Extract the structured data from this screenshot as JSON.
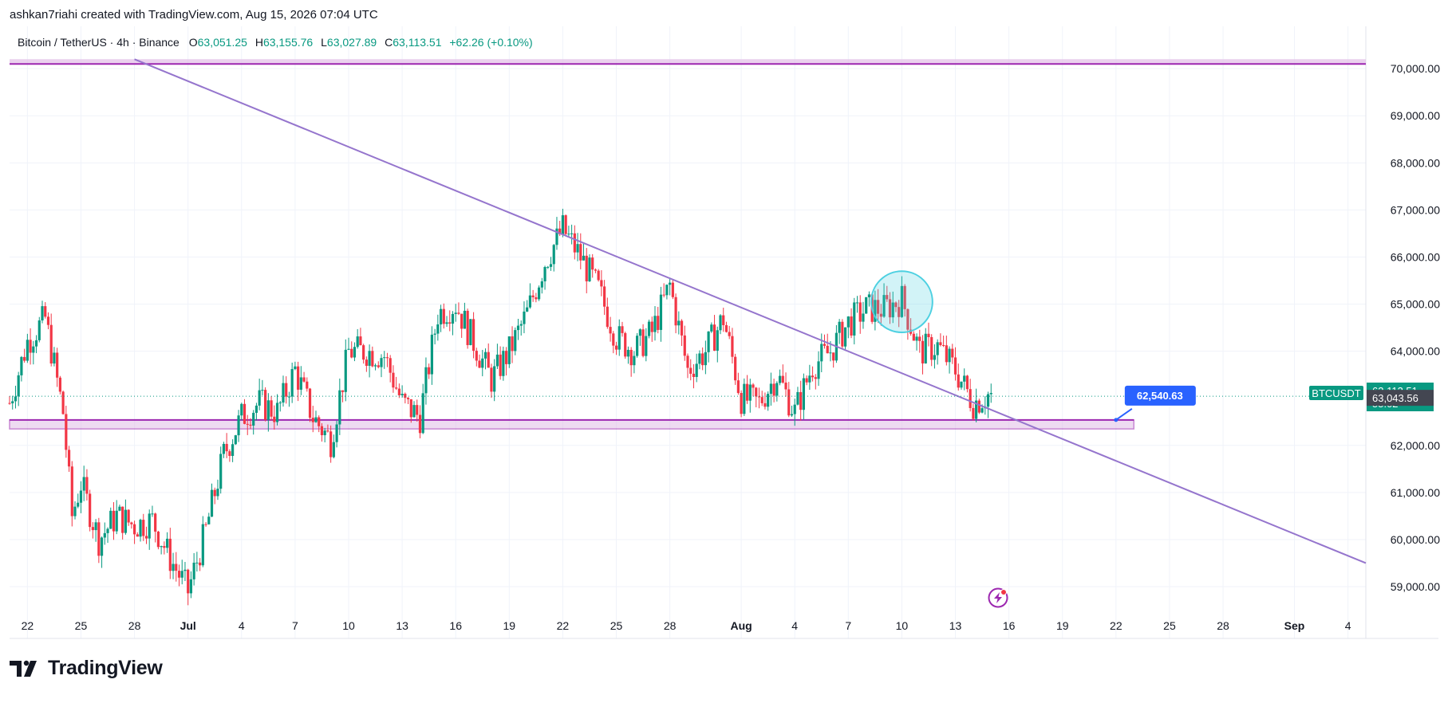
{
  "header": {
    "attribution": "ashkan7riahi created with TradingView.com, Aug 15, 2026 07:04 UTC"
  },
  "legend": {
    "symbol": "Bitcoin / TetherUS · 4h · Binance",
    "o_label": "O",
    "o_value": "63,051.25",
    "h_label": "H",
    "h_value": "63,155.76",
    "l_label": "L",
    "l_value": "63,027.89",
    "c_label": "C",
    "c_value": "63,113.51",
    "change": "+62.26 (+0.10%)"
  },
  "price_scale": {
    "ticks": [
      "70,000.00",
      "69,000.00",
      "68,000.00",
      "67,000.00",
      "66,000.00",
      "65,000.00",
      "64,000.00",
      "62,000.00",
      "61,000.00",
      "60,000.00",
      "59,000.00"
    ],
    "symbol_tag": "BTCUSDT",
    "last_price": "63,113.51",
    "countdown": "55:02",
    "ref_price": "63,043.56"
  },
  "time_scale": {
    "ticks": [
      "22",
      "25",
      "28",
      "Jul",
      "4",
      "7",
      "10",
      "13",
      "16",
      "19",
      "22",
      "25",
      "28",
      "Aug",
      "4",
      "7",
      "10",
      "13",
      "16",
      "19",
      "22",
      "25",
      "28",
      "Sep",
      "4"
    ]
  },
  "annotations": {
    "price_label": "62,540.63"
  },
  "brand": {
    "name": "TradingView"
  },
  "colors": {
    "up": "#089981",
    "down": "#f23645",
    "trendline": "#9575cd",
    "zone": "#9c27b0",
    "zone_fill": "#e1bee7",
    "circle": "#4dd0e1",
    "label_bg": "#2962ff",
    "last_price_bg": "#089981",
    "ref_bg": "#434651"
  },
  "chart_data": {
    "type": "candlestick",
    "symbol": "BTCUSDT",
    "timeframe": "4h",
    "exchange": "Binance",
    "ylim": [
      57900,
      70900
    ],
    "y_ticks": [
      59000,
      60000,
      61000,
      62000,
      64000,
      65000,
      66000,
      67000,
      68000,
      69000,
      70000
    ],
    "x_range": [
      "2026-06-21",
      "2026-09-05"
    ],
    "x_ticks": [
      "2026-06-22",
      "2026-06-25",
      "2026-06-28",
      "2026-07-01",
      "2026-07-04",
      "2026-07-07",
      "2026-07-10",
      "2026-07-13",
      "2026-07-16",
      "2026-07-19",
      "2026-07-22",
      "2026-07-25",
      "2026-07-28",
      "2026-08-01",
      "2026-08-04",
      "2026-08-07",
      "2026-08-10",
      "2026-08-13",
      "2026-08-16",
      "2026-08-19",
      "2026-08-22",
      "2026-08-25",
      "2026-08-28",
      "2026-09-01",
      "2026-09-04"
    ],
    "close_path": [
      [
        "2026-06-21",
        62900
      ],
      [
        "2026-06-22",
        64200
      ],
      [
        "2026-06-23",
        64700
      ],
      [
        "2026-06-24",
        62700
      ],
      [
        "2026-06-24T12",
        60500
      ],
      [
        "2026-06-25",
        61200
      ],
      [
        "2026-06-26",
        60000
      ],
      [
        "2026-06-27",
        60500
      ],
      [
        "2026-06-28",
        60300
      ],
      [
        "2026-06-29",
        60400
      ],
      [
        "2026-06-30",
        59600
      ],
      [
        "2026-07-01",
        58900
      ],
      [
        "2026-07-02",
        60200
      ],
      [
        "2026-07-03",
        61800
      ],
      [
        "2026-07-04",
        62600
      ],
      [
        "2026-07-05",
        62900
      ],
      [
        "2026-07-06",
        62700
      ],
      [
        "2026-07-07",
        63600
      ],
      [
        "2026-07-08",
        62600
      ],
      [
        "2026-07-09",
        62100
      ],
      [
        "2026-07-10",
        64000
      ],
      [
        "2026-07-11",
        64000
      ],
      [
        "2026-07-12",
        63900
      ],
      [
        "2026-07-13",
        62900
      ],
      [
        "2026-07-14",
        62600
      ],
      [
        "2026-07-15",
        64800
      ],
      [
        "2026-07-16",
        65000
      ],
      [
        "2026-07-17",
        64200
      ],
      [
        "2026-07-18",
        63400
      ],
      [
        "2026-07-19",
        64000
      ],
      [
        "2026-07-20",
        64800
      ],
      [
        "2026-07-21",
        65900
      ],
      [
        "2026-07-22",
        66600
      ],
      [
        "2026-07-23",
        66000
      ],
      [
        "2026-07-24",
        65300
      ],
      [
        "2026-07-25",
        64300
      ],
      [
        "2026-07-26",
        64000
      ],
      [
        "2026-07-27",
        64400
      ],
      [
        "2026-07-28",
        65400
      ],
      [
        "2026-07-29",
        63600
      ],
      [
        "2026-07-30",
        64000
      ],
      [
        "2026-07-31",
        64700
      ],
      [
        "2026-08-01",
        63000
      ],
      [
        "2026-08-02",
        62900
      ],
      [
        "2026-08-03",
        63500
      ],
      [
        "2026-08-04",
        62700
      ],
      [
        "2026-08-05",
        63700
      ],
      [
        "2026-08-06",
        64000
      ],
      [
        "2026-08-07",
        64600
      ],
      [
        "2026-08-08",
        64900
      ],
      [
        "2026-08-09",
        64900
      ],
      [
        "2026-08-10",
        65100
      ],
      [
        "2026-08-11",
        64000
      ],
      [
        "2026-08-12",
        64100
      ],
      [
        "2026-08-13",
        63600
      ],
      [
        "2026-08-14",
        62900
      ],
      [
        "2026-08-15",
        63113.51
      ]
    ],
    "drawings": {
      "horizontal_resistance": 70100,
      "support_zone": [
        62350,
        62540.63
      ],
      "support_label": 62540.63,
      "trendline": [
        [
          "2026-06-28",
          70200
        ],
        [
          "2026-09-05",
          59500
        ]
      ],
      "highlight_circle": {
        "center": [
          "2026-08-10",
          65050
        ],
        "radius_price": 650
      },
      "last_price": 63113.51,
      "ref_price": 63043.56
    }
  }
}
